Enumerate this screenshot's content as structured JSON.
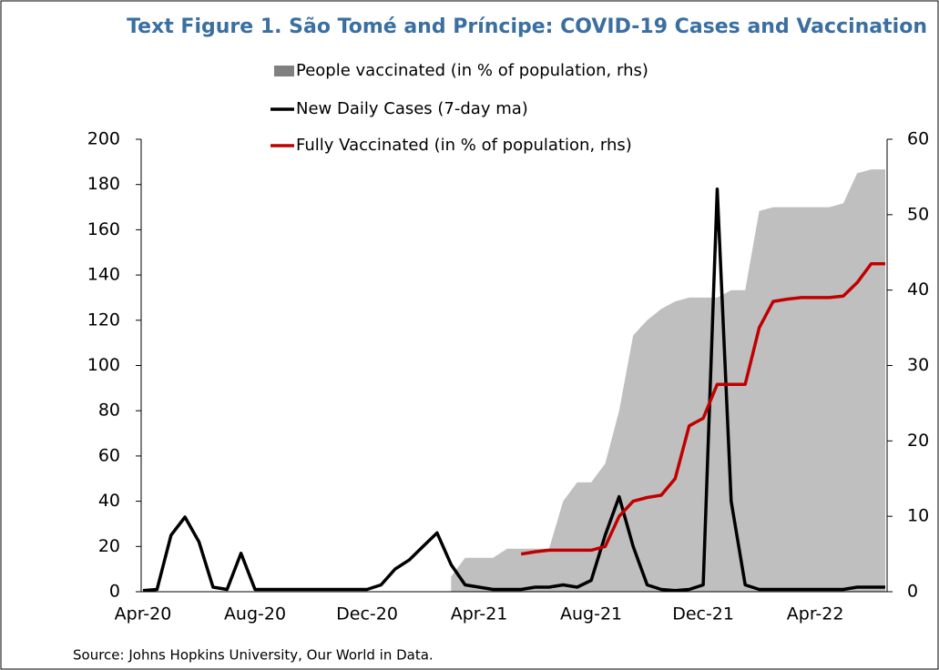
{
  "chart_data": {
    "type": "line",
    "title": "Text Figure 1. São Tomé and Príncipe: COVID-19 Cases and Vaccination",
    "source": "Source: Johns Hopkins University, Our World in Data.",
    "categories": [
      "Apr-20",
      null,
      null,
      null,
      null,
      null,
      null,
      null,
      "Aug-20",
      null,
      null,
      null,
      null,
      null,
      null,
      null,
      "Dec-20",
      null,
      null,
      null,
      null,
      null,
      null,
      null,
      "Apr-21",
      null,
      null,
      null,
      null,
      null,
      null,
      null,
      "Aug-21",
      null,
      null,
      null,
      null,
      null,
      null,
      null,
      "Dec-21",
      null,
      null,
      null,
      null,
      null,
      null,
      null,
      "Apr-22",
      null,
      null,
      null,
      null,
      null
    ],
    "ylim": [
      0,
      200
    ],
    "yticks": [
      0,
      20,
      40,
      60,
      80,
      100,
      120,
      140,
      160,
      180,
      200
    ],
    "y2lim": [
      0,
      60
    ],
    "y2ticks": [
      0,
      10,
      20,
      30,
      40,
      50,
      60
    ],
    "series": [
      {
        "name": "People vaccinated (in % of population, rhs)",
        "color": "#bfbfbf",
        "axis": "y2",
        "kind": "area",
        "values": [
          null,
          null,
          null,
          null,
          null,
          null,
          null,
          null,
          null,
          null,
          null,
          null,
          null,
          null,
          null,
          null,
          null,
          null,
          null,
          null,
          null,
          null,
          2,
          4.5,
          4.5,
          4.5,
          5.7,
          5.7,
          5.7,
          5.7,
          12,
          14.5,
          14.5,
          17,
          24,
          34,
          36,
          37.5,
          38.5,
          39,
          39,
          39,
          40,
          40,
          50.5,
          51,
          51,
          51,
          51,
          51,
          51.5,
          55.5,
          56,
          56
        ]
      },
      {
        "name": "New Daily Cases (7-day ma)",
        "color": "#000000",
        "kind": "line",
        "values": [
          0.5,
          1,
          25,
          33,
          22,
          2,
          1,
          17,
          1,
          1,
          1,
          1,
          1,
          1,
          1,
          1,
          1,
          3,
          10,
          14,
          20,
          26,
          12,
          3,
          2,
          1,
          1,
          1,
          2,
          2,
          3,
          2,
          5,
          25,
          42,
          20,
          3,
          1,
          0.5,
          1,
          3,
          178,
          40,
          3,
          1,
          1,
          1,
          1,
          1,
          1,
          1,
          2,
          2,
          2
        ]
      },
      {
        "name": "Fully Vaccinated (in % of population, rhs)",
        "color": "#c00000",
        "axis": "y2",
        "kind": "line",
        "values": [
          null,
          null,
          null,
          null,
          null,
          null,
          null,
          null,
          null,
          null,
          null,
          null,
          null,
          null,
          null,
          null,
          null,
          null,
          null,
          null,
          null,
          null,
          null,
          null,
          null,
          null,
          null,
          5,
          5.3,
          5.5,
          5.5,
          5.5,
          5.5,
          6,
          10,
          12,
          12.5,
          12.8,
          15,
          22,
          23,
          27.5,
          27.5,
          27.5,
          35,
          38.5,
          38.8,
          39,
          39,
          39,
          39.2,
          41,
          43.5,
          43.5
        ]
      }
    ]
  }
}
